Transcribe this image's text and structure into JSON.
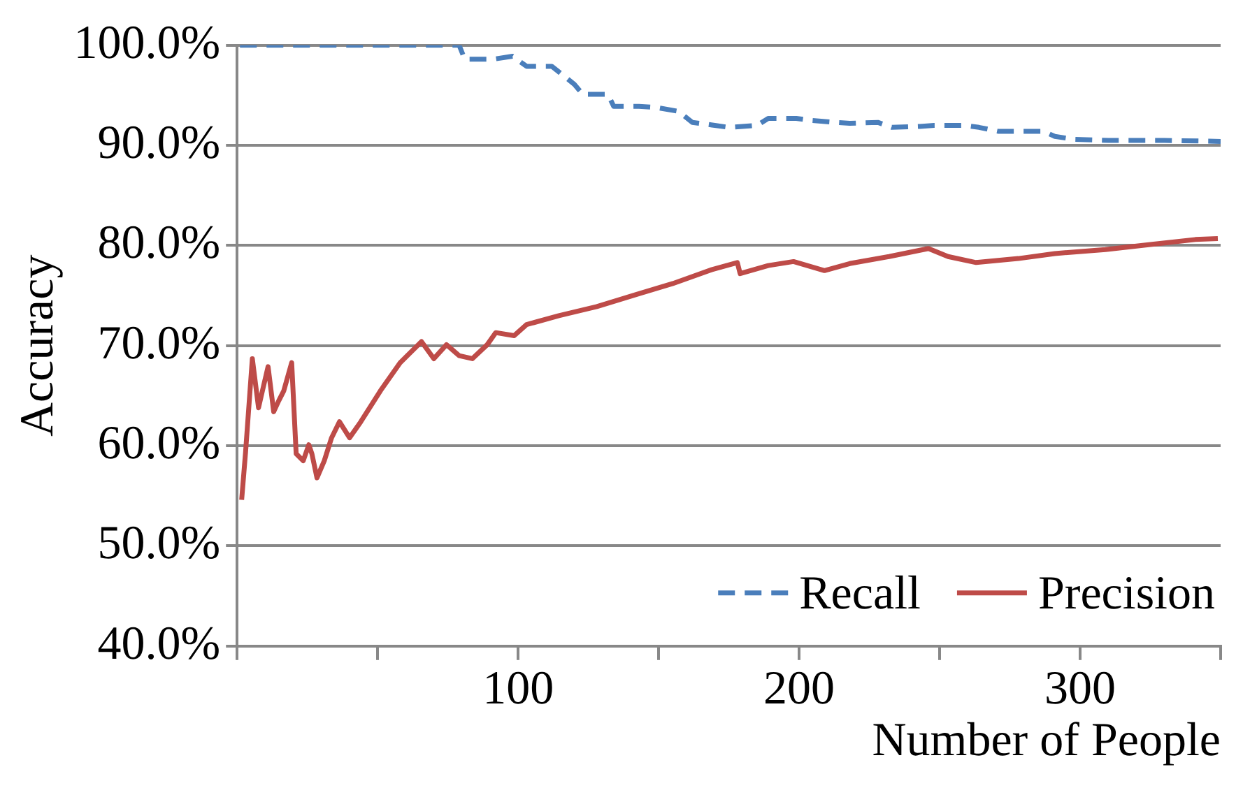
{
  "chart_data": {
    "type": "line",
    "xlabel": "Number of People",
    "ylabel": "Accuracy",
    "xlim": [
      0,
      350
    ],
    "xticks": [
      {
        "value": 0,
        "label": null
      },
      {
        "value": 50,
        "label": null
      },
      100,
      {
        "value": 150,
        "label": null
      },
      200,
      {
        "value": 250,
        "label": null
      },
      300,
      {
        "value": 350,
        "label": null
      }
    ],
    "ylim": [
      40,
      100
    ],
    "yticks": [
      {
        "value": 40,
        "label": "40.0%"
      },
      {
        "value": 50,
        "label": "50.0%"
      },
      {
        "value": 60,
        "label": "60.0%"
      },
      {
        "value": 70,
        "label": "70.0%"
      },
      {
        "value": 80,
        "label": "80.0%"
      },
      {
        "value": 90,
        "label": "90.0%"
      },
      {
        "value": 100,
        "label": "100.0%"
      }
    ],
    "grid": "y",
    "legend": "bottom right",
    "marker": "none",
    "series": [
      {
        "name": "Recall",
        "color": "#4a7ebb",
        "line_style": "dashed",
        "x": [
          1,
          79,
          81,
          91,
          98,
          103,
          110,
          112,
          116,
          120,
          123,
          132,
          134,
          143,
          149,
          157,
          162,
          170,
          175,
          185,
          189,
          199,
          204,
          213,
          218,
          228,
          233,
          243,
          248,
          259,
          264,
          271,
          276,
          287,
          291,
          298,
          310,
          330,
          350
        ],
        "values": [
          100,
          100,
          98.6,
          98.6,
          98.9,
          97.9,
          97.9,
          97.9,
          97.0,
          96.1,
          95.1,
          95.1,
          93.9,
          93.9,
          93.8,
          93.4,
          92.3,
          92.0,
          91.8,
          92.0,
          92.7,
          92.7,
          92.5,
          92.3,
          92.2,
          92.3,
          91.8,
          91.9,
          92.0,
          92.0,
          91.8,
          91.4,
          91.4,
          91.4,
          90.9,
          90.6,
          90.5,
          90.5,
          90.4
        ]
      },
      {
        "name": "Precision",
        "color": "#be4b48",
        "line_style": "solid",
        "x": [
          1.6,
          3,
          5.4,
          7.6,
          9,
          11,
          13,
          14.8,
          16.6,
          19.4,
          21,
          23.5,
          25.5,
          26.6,
          28.4,
          31,
          33.6,
          36.4,
          40,
          44,
          51,
          58,
          65.6,
          70,
          74.5,
          79,
          83.7,
          89,
          92,
          98.6,
          103,
          114.5,
          128,
          142,
          155,
          169,
          178,
          179,
          189,
          198,
          209,
          218,
          232,
          246,
          253,
          263,
          278,
          291,
          309,
          325,
          341,
          349
        ],
        "values": [
          54.6,
          59.4,
          68.7,
          63.8,
          65.5,
          67.9,
          63.4,
          64.5,
          65.5,
          68.3,
          59.2,
          58.5,
          60.1,
          59.2,
          56.8,
          58.5,
          60.8,
          62.4,
          60.8,
          62.4,
          65.5,
          68.3,
          70.4,
          68.7,
          70.1,
          69.0,
          68.7,
          70.1,
          71.3,
          71.0,
          72.1,
          73.0,
          73.9,
          75.1,
          76.2,
          77.6,
          78.3,
          77.2,
          78.0,
          78.4,
          77.5,
          78.2,
          78.9,
          79.7,
          78.9,
          78.3,
          78.7,
          79.2,
          79.6,
          80.1,
          80.6,
          80.7
        ]
      }
    ]
  }
}
